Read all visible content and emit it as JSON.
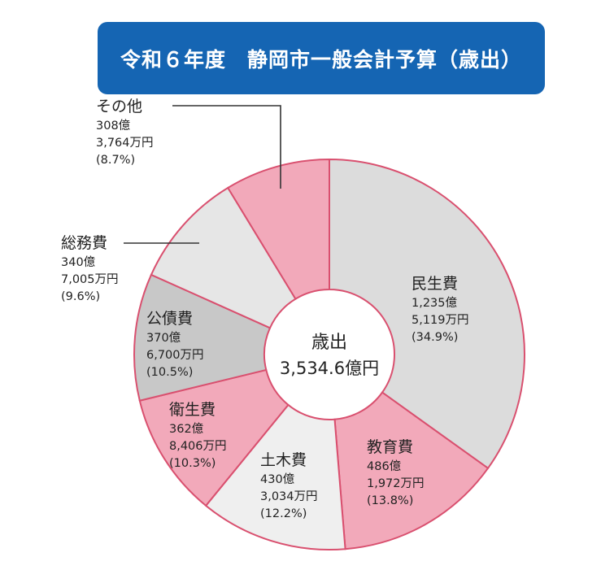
{
  "chart_data": {
    "type": "pie",
    "variant": "donut",
    "title": "令和６年度　静岡市一般会計予算（歳出）",
    "center_label": {
      "line1": "歳出",
      "line2": "3,534.6億円"
    },
    "unit": "億円",
    "slices": [
      {
        "name": "民生費",
        "oku": "1,235億",
        "man": "5,119万円",
        "pct_label": "(34.9%)",
        "value": 1235.5119,
        "percent": 34.9,
        "color": "#dcdcdc"
      },
      {
        "name": "教育費",
        "oku": "486億",
        "man": "1,972万円",
        "pct_label": "(13.8%)",
        "value": 486.1972,
        "percent": 13.8,
        "color": "#f2a9ba"
      },
      {
        "name": "土木費",
        "oku": "430億",
        "man": "3,034万円",
        "pct_label": "(12.2%)",
        "value": 430.3034,
        "percent": 12.2,
        "color": "#efefef"
      },
      {
        "name": "衛生費",
        "oku": "362億",
        "man": "8,406万円",
        "pct_label": "(10.3%)",
        "value": 362.8406,
        "percent": 10.3,
        "color": "#f2a9ba"
      },
      {
        "name": "公債費",
        "oku": "370億",
        "man": "6,700万円",
        "pct_label": "(10.5%)",
        "value": 370.67,
        "percent": 10.5,
        "color": "#c8c8c8"
      },
      {
        "name": "総務費",
        "oku": "340億",
        "man": "7,005万円",
        "pct_label": "(9.6%)",
        "value": 340.7005,
        "percent": 9.6,
        "color": "#e6e6e6"
      },
      {
        "name": "その他",
        "oku": "308億",
        "man": "3,764万円",
        "pct_label": "(8.7%)",
        "value": 308.3764,
        "percent": 8.7,
        "color": "#f2a9ba"
      }
    ],
    "colors": {
      "edge": "#d9506f",
      "title_bg": "#1565b3"
    }
  }
}
